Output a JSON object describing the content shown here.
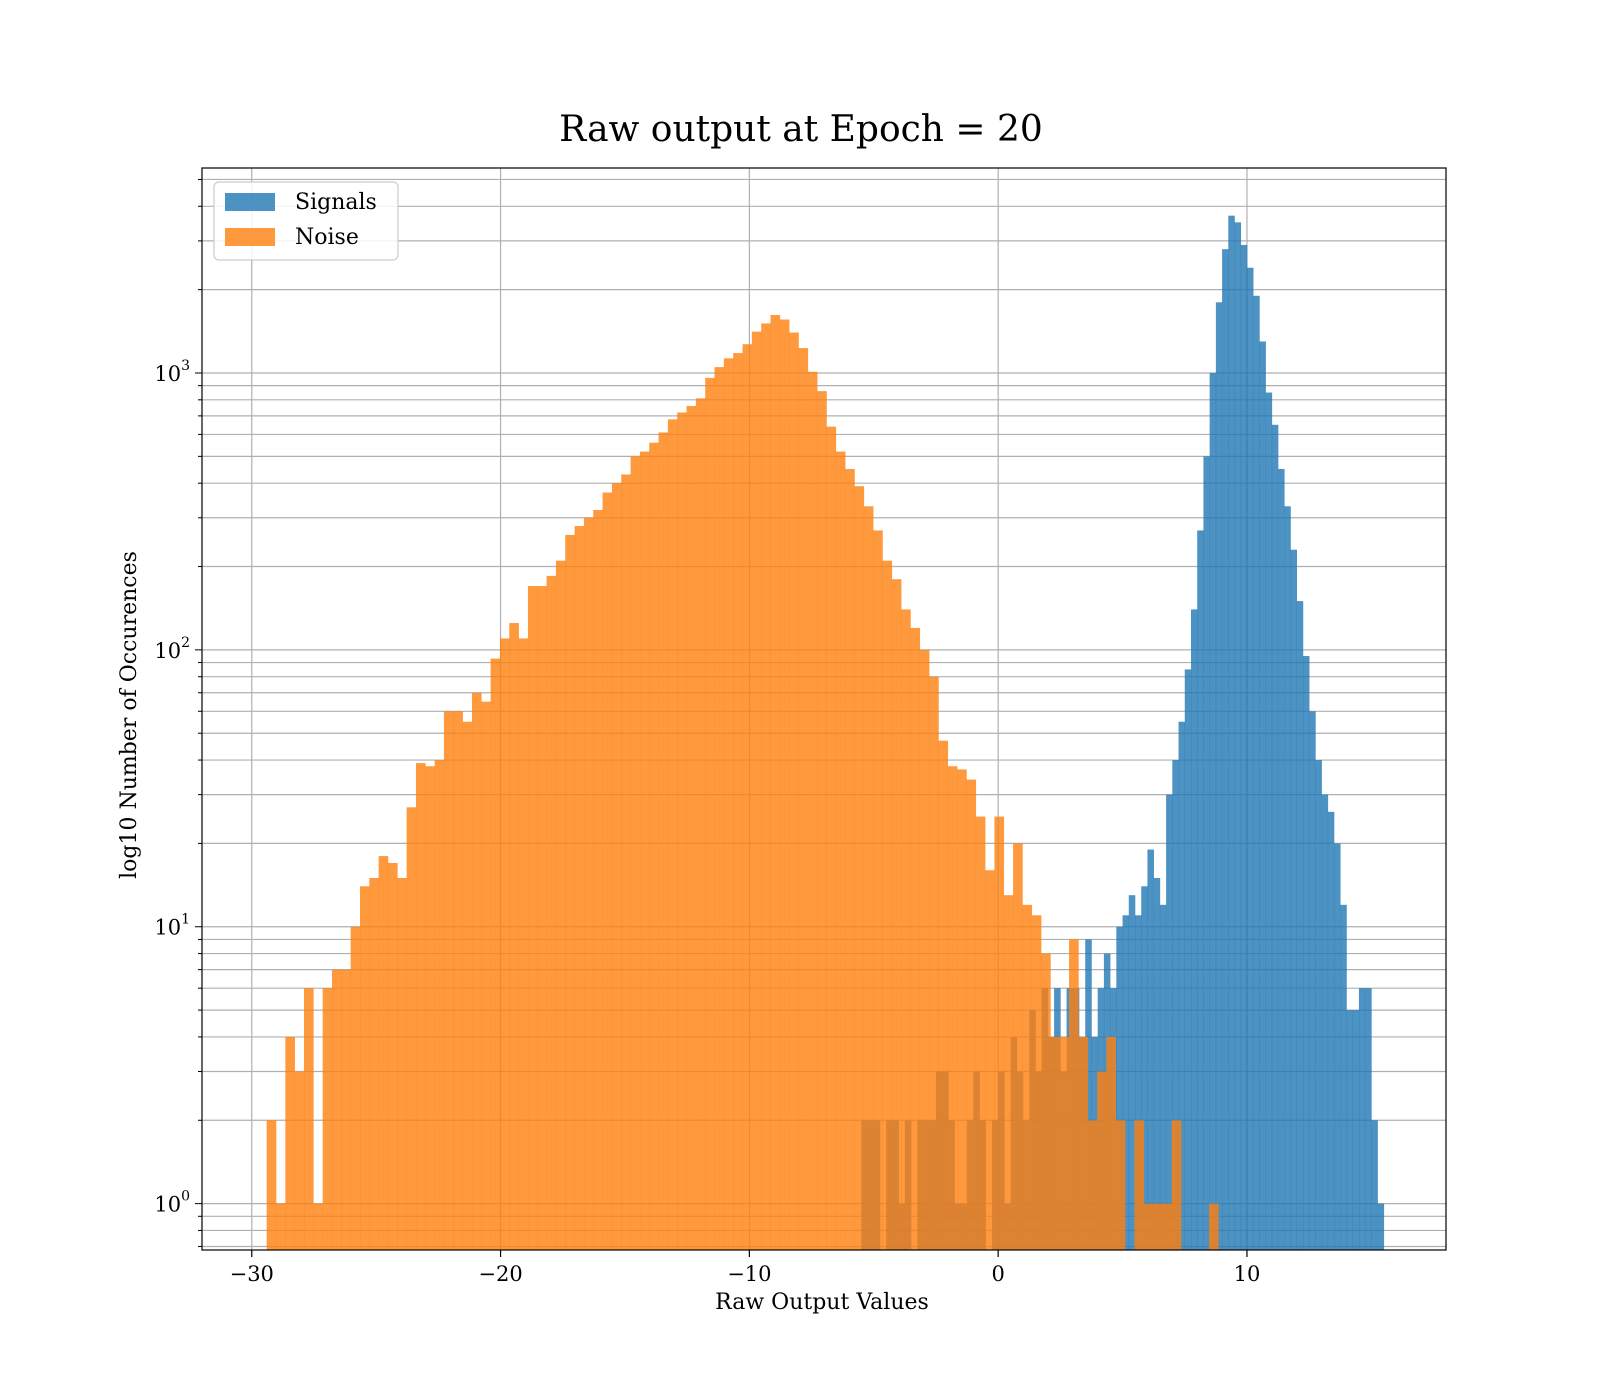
{
  "chart_data": {
    "type": "bar",
    "title": "Raw output at Epoch = 20",
    "xlabel": "Raw Output Values",
    "ylabel": "log10 Number of Occurences",
    "xlim": [
      -32,
      18
    ],
    "ylim": [
      0.68,
      5500
    ],
    "yscale": "log",
    "grid": true,
    "legend": {
      "placement": "top-left",
      "entries": [
        "Signals",
        "Noise"
      ]
    },
    "x_ticks": [
      {
        "value": -30,
        "label": "−30"
      },
      {
        "value": -20,
        "label": "−20"
      },
      {
        "value": -10,
        "label": "−10"
      },
      {
        "value": 0,
        "label": "0"
      },
      {
        "value": 10,
        "label": "10"
      }
    ],
    "y_ticks": [
      {
        "value": 1,
        "base": "10",
        "exp": "0"
      },
      {
        "value": 10,
        "base": "10",
        "exp": "1"
      },
      {
        "value": 100,
        "base": "10",
        "exp": "2"
      },
      {
        "value": 1000,
        "base": "10",
        "exp": "3"
      }
    ],
    "series": [
      {
        "name": "Signals",
        "color": "#1f77b4",
        "opacity": 0.8,
        "bin_start": -5.5,
        "bin_width": 0.25,
        "values": [
          2,
          2,
          2,
          0,
          2,
          2,
          1,
          2,
          0,
          2,
          2,
          2,
          3,
          3,
          2,
          1,
          1,
          2,
          3,
          2,
          0,
          2,
          3,
          1,
          4,
          3,
          2,
          5,
          3,
          6,
          4,
          6,
          3,
          6,
          6,
          4,
          9,
          4,
          6,
          8,
          6,
          10,
          11,
          13,
          11,
          14,
          19,
          15,
          12,
          30,
          40,
          55,
          85,
          140,
          270,
          500,
          1000,
          1800,
          2800,
          3700,
          3500,
          2900,
          2400,
          1900,
          1300,
          850,
          650,
          450,
          330,
          230,
          150,
          95,
          60,
          40,
          30,
          26,
          20,
          12,
          5,
          5,
          6,
          6,
          2,
          1
        ]
      },
      {
        "name": "Noise",
        "color": "#ff7f0e",
        "opacity": 0.8,
        "bin_start": -29.4,
        "bin_width": 0.375,
        "values": [
          2,
          1,
          4,
          3,
          6,
          1,
          6,
          7,
          7,
          10,
          14,
          15,
          18,
          17,
          15,
          27,
          39,
          38,
          40,
          60,
          60,
          55,
          70,
          65,
          93,
          110,
          125,
          110,
          170,
          170,
          185,
          210,
          260,
          280,
          300,
          320,
          370,
          400,
          430,
          500,
          520,
          560,
          610,
          680,
          720,
          760,
          810,
          960,
          1050,
          1130,
          1180,
          1270,
          1410,
          1510,
          1620,
          1560,
          1400,
          1230,
          1010,
          860,
          640,
          520,
          450,
          390,
          330,
          270,
          210,
          180,
          140,
          120,
          100,
          80,
          47,
          38,
          37,
          34,
          25,
          16,
          25,
          13,
          20,
          12,
          11,
          8,
          4,
          4,
          9,
          4,
          2,
          3,
          4,
          2,
          0,
          2,
          1,
          1,
          1,
          2,
          0,
          0,
          0,
          1
        ]
      }
    ]
  }
}
